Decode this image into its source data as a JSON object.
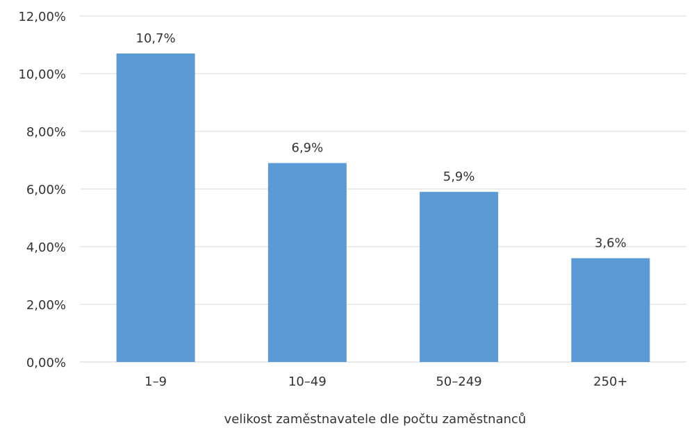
{
  "chart_data": {
    "type": "bar",
    "categories": [
      "1–9",
      "10–49",
      "50–249",
      "250+"
    ],
    "values": [
      10.7,
      6.9,
      5.9,
      3.6
    ],
    "data_labels": [
      "10,7%",
      "6,9%",
      "5,9%",
      "3,6%"
    ],
    "y_ticks": [
      0,
      2,
      4,
      6,
      8,
      10,
      12
    ],
    "y_tick_labels": [
      "0,00%",
      "2,00%",
      "4,00%",
      "6,00%",
      "8,00%",
      "10,00%",
      "12,00%"
    ],
    "ylim": [
      0,
      12
    ],
    "xlabel": "velikost zaměstnavatele dle počtu zaměstnanců",
    "ylabel": "",
    "title": "",
    "grid": true,
    "legend": "none",
    "bar_color": "#5b9bd5"
  }
}
